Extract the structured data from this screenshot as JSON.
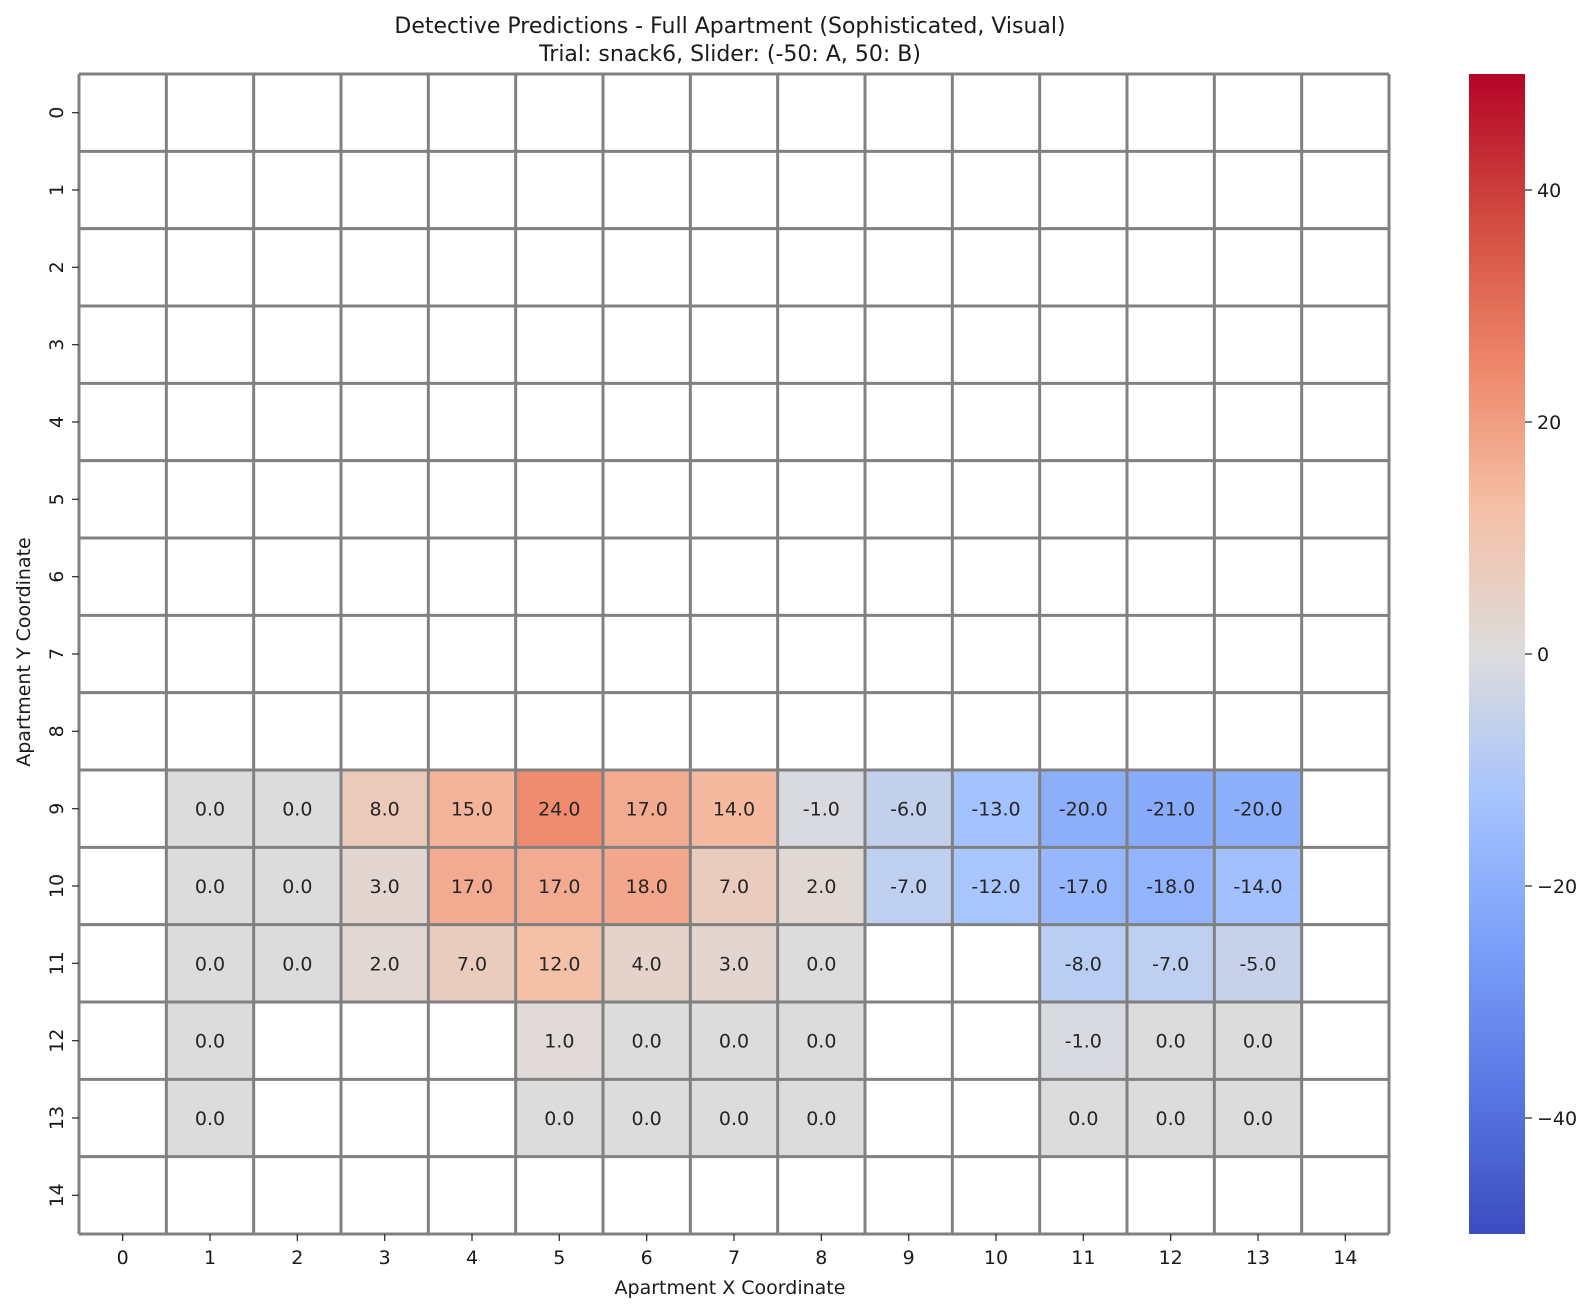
{
  "chart_data": {
    "type": "heatmap",
    "title": "Detective Predictions - Full Apartment (Sophisticated, Visual)",
    "subtitle": "Trial: snack6, Slider: (-50: A, 50: B)",
    "xlabel": "Apartment X Coordinate",
    "ylabel": "Apartment Y Coordinate",
    "x_ticks": [
      "0",
      "1",
      "2",
      "3",
      "4",
      "5",
      "6",
      "7",
      "8",
      "9",
      "10",
      "11",
      "12",
      "13",
      "14"
    ],
    "y_ticks": [
      "0",
      "1",
      "2",
      "3",
      "4",
      "5",
      "6",
      "7",
      "8",
      "9",
      "10",
      "11",
      "12",
      "13",
      "14"
    ],
    "colormap": "coolwarm",
    "vmin": -50,
    "vmax": 50,
    "colorbar_ticks": [
      "−40",
      "−20",
      "0",
      "20",
      "40"
    ],
    "colorbar_tick_values": [
      -40,
      -20,
      0,
      20,
      40
    ],
    "grid": true,
    "grid_color": "#808080",
    "cells": [
      {
        "x": 1,
        "y": 9,
        "value": 0.0,
        "label": "0.0"
      },
      {
        "x": 2,
        "y": 9,
        "value": 0.0,
        "label": "0.0"
      },
      {
        "x": 3,
        "y": 9,
        "value": 8.0,
        "label": "8.0"
      },
      {
        "x": 4,
        "y": 9,
        "value": 15.0,
        "label": "15.0"
      },
      {
        "x": 5,
        "y": 9,
        "value": 24.0,
        "label": "24.0"
      },
      {
        "x": 6,
        "y": 9,
        "value": 17.0,
        "label": "17.0"
      },
      {
        "x": 7,
        "y": 9,
        "value": 14.0,
        "label": "14.0"
      },
      {
        "x": 8,
        "y": 9,
        "value": -1.0,
        "label": "-1.0"
      },
      {
        "x": 9,
        "y": 9,
        "value": -6.0,
        "label": "-6.0"
      },
      {
        "x": 10,
        "y": 9,
        "value": -13.0,
        "label": "-13.0"
      },
      {
        "x": 11,
        "y": 9,
        "value": -20.0,
        "label": "-20.0"
      },
      {
        "x": 12,
        "y": 9,
        "value": -21.0,
        "label": "-21.0"
      },
      {
        "x": 13,
        "y": 9,
        "value": -20.0,
        "label": "-20.0"
      },
      {
        "x": 1,
        "y": 10,
        "value": 0.0,
        "label": "0.0"
      },
      {
        "x": 2,
        "y": 10,
        "value": 0.0,
        "label": "0.0"
      },
      {
        "x": 3,
        "y": 10,
        "value": 3.0,
        "label": "3.0"
      },
      {
        "x": 4,
        "y": 10,
        "value": 17.0,
        "label": "17.0"
      },
      {
        "x": 5,
        "y": 10,
        "value": 17.0,
        "label": "17.0"
      },
      {
        "x": 6,
        "y": 10,
        "value": 18.0,
        "label": "18.0"
      },
      {
        "x": 7,
        "y": 10,
        "value": 7.0,
        "label": "7.0"
      },
      {
        "x": 8,
        "y": 10,
        "value": 2.0,
        "label": "2.0"
      },
      {
        "x": 9,
        "y": 10,
        "value": -7.0,
        "label": "-7.0"
      },
      {
        "x": 10,
        "y": 10,
        "value": -12.0,
        "label": "-12.0"
      },
      {
        "x": 11,
        "y": 10,
        "value": -17.0,
        "label": "-17.0"
      },
      {
        "x": 12,
        "y": 10,
        "value": -18.0,
        "label": "-18.0"
      },
      {
        "x": 13,
        "y": 10,
        "value": -14.0,
        "label": "-14.0"
      },
      {
        "x": 1,
        "y": 11,
        "value": 0.0,
        "label": "0.0"
      },
      {
        "x": 2,
        "y": 11,
        "value": 0.0,
        "label": "0.0"
      },
      {
        "x": 3,
        "y": 11,
        "value": 2.0,
        "label": "2.0"
      },
      {
        "x": 4,
        "y": 11,
        "value": 7.0,
        "label": "7.0"
      },
      {
        "x": 5,
        "y": 11,
        "value": 12.0,
        "label": "12.0"
      },
      {
        "x": 6,
        "y": 11,
        "value": 4.0,
        "label": "4.0"
      },
      {
        "x": 7,
        "y": 11,
        "value": 3.0,
        "label": "3.0"
      },
      {
        "x": 8,
        "y": 11,
        "value": 0.0,
        "label": "0.0"
      },
      {
        "x": 11,
        "y": 11,
        "value": -8.0,
        "label": "-8.0"
      },
      {
        "x": 12,
        "y": 11,
        "value": -7.0,
        "label": "-7.0"
      },
      {
        "x": 13,
        "y": 11,
        "value": -5.0,
        "label": "-5.0"
      },
      {
        "x": 1,
        "y": 12,
        "value": 0.0,
        "label": "0.0"
      },
      {
        "x": 5,
        "y": 12,
        "value": 1.0,
        "label": "1.0"
      },
      {
        "x": 6,
        "y": 12,
        "value": 0.0,
        "label": "0.0"
      },
      {
        "x": 7,
        "y": 12,
        "value": 0.0,
        "label": "0.0"
      },
      {
        "x": 8,
        "y": 12,
        "value": 0.0,
        "label": "0.0"
      },
      {
        "x": 11,
        "y": 12,
        "value": -1.0,
        "label": "-1.0"
      },
      {
        "x": 12,
        "y": 12,
        "value": 0.0,
        "label": "0.0"
      },
      {
        "x": 13,
        "y": 12,
        "value": 0.0,
        "label": "0.0"
      },
      {
        "x": 1,
        "y": 13,
        "value": 0.0,
        "label": "0.0"
      },
      {
        "x": 5,
        "y": 13,
        "value": 0.0,
        "label": "0.0"
      },
      {
        "x": 6,
        "y": 13,
        "value": 0.0,
        "label": "0.0"
      },
      {
        "x": 7,
        "y": 13,
        "value": 0.0,
        "label": "0.0"
      },
      {
        "x": 8,
        "y": 13,
        "value": 0.0,
        "label": "0.0"
      },
      {
        "x": 11,
        "y": 13,
        "value": 0.0,
        "label": "0.0"
      },
      {
        "x": 12,
        "y": 13,
        "value": 0.0,
        "label": "0.0"
      },
      {
        "x": 13,
        "y": 13,
        "value": 0.0,
        "label": "0.0"
      }
    ]
  }
}
